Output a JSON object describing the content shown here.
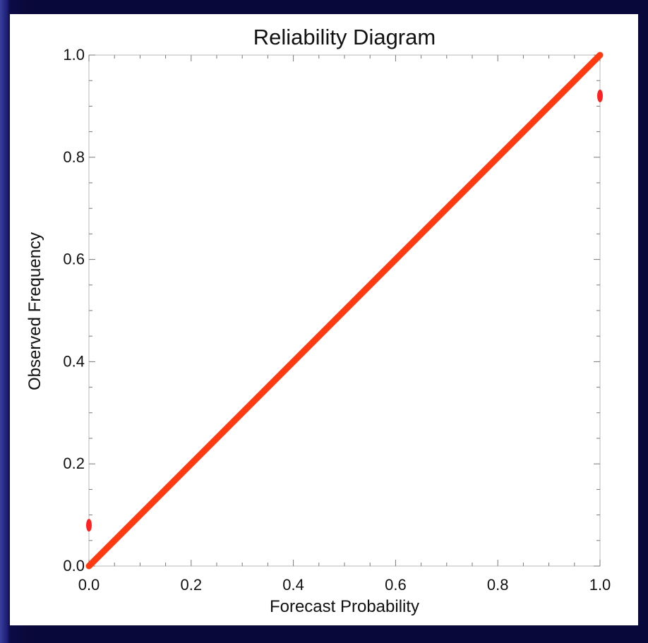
{
  "chart_data": {
    "type": "line",
    "title": "Reliability Diagram",
    "xlabel": "Forecast Probability",
    "ylabel": "Observed Frequency",
    "xlim": [
      0.0,
      1.0
    ],
    "ylim": [
      0.0,
      1.0
    ],
    "x_ticks": [
      "0.0",
      "0.2",
      "0.4",
      "0.6",
      "0.8",
      "1.0"
    ],
    "y_ticks": [
      "0.0",
      "0.2",
      "0.4",
      "0.6",
      "0.8",
      "1.0"
    ],
    "grid": false,
    "legend": "none",
    "series": [
      {
        "color": "#ff3a10",
        "x": [
          0.0,
          1.0
        ],
        "y": [
          0.0,
          1.0
        ]
      }
    ],
    "points": [
      {
        "x": 0.0,
        "y": 0.08,
        "color": "#ff2020"
      },
      {
        "x": 1.0,
        "y": 0.92,
        "color": "#ff2020"
      }
    ]
  }
}
